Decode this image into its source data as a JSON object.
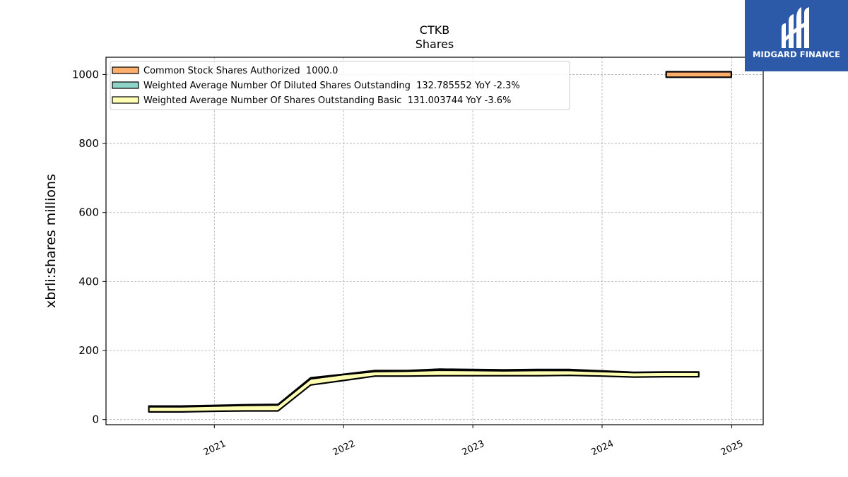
{
  "chart_data": {
    "type": "area",
    "title": "CTKB",
    "subtitle": "Shares",
    "ylabel": "xbrli:shares millions",
    "xlabel": "",
    "ylim": [
      -15,
      1050
    ],
    "y_ticks": [
      "0",
      "200",
      "400",
      "600",
      "800",
      "1000"
    ],
    "x_ticks": [
      "2021",
      "2022",
      "2023",
      "2024",
      "2025"
    ],
    "grid": true,
    "legend_position": "upper-left",
    "series": [
      {
        "name": "Common Stock Shares Authorized  1000.0",
        "color": "#fdae6b",
        "x": [
          "2024-06-30",
          "2024-12-31"
        ],
        "low": [
          992,
          992
        ],
        "high": [
          1008,
          1008
        ]
      },
      {
        "name": "Weighted Average Number Of Diluted Shares Outstanding  132.785552 YoY -2.3%",
        "color": "#8dd3c7",
        "x": [
          "2020-06-30",
          "2020-09-30",
          "2020-12-31",
          "2021-03-31",
          "2021-06-30",
          "2021-09-30",
          "2021-12-31",
          "2022-03-31",
          "2022-06-30",
          "2022-09-30",
          "2022-12-31",
          "2023-03-31",
          "2023-06-30",
          "2023-09-30",
          "2023-12-31",
          "2024-03-31",
          "2024-06-30",
          "2024-09-30"
        ],
        "low": [
          37,
          37,
          39,
          41,
          42,
          118,
          130,
          139,
          140,
          143,
          142,
          141,
          142,
          142,
          139,
          136,
          137,
          137
        ],
        "high": [
          39,
          39,
          41,
          43,
          44,
          121,
          131,
          142,
          142,
          146,
          145,
          144,
          145,
          145,
          141,
          137,
          138,
          138
        ]
      },
      {
        "name": "Weighted Average Number Of Shares Outstanding Basic  131.003744 YoY -3.6%",
        "color": "#ffffb3",
        "x": [
          "2020-06-30",
          "2020-09-30",
          "2020-12-31",
          "2021-03-31",
          "2021-06-30",
          "2021-09-30",
          "2021-12-31",
          "2022-03-31",
          "2022-06-30",
          "2022-09-30",
          "2022-12-31",
          "2023-03-31",
          "2023-06-30",
          "2023-09-30",
          "2023-12-31",
          "2024-03-31",
          "2024-06-30",
          "2024-09-30"
        ],
        "low": [
          22,
          22,
          24,
          25,
          25,
          100,
          113,
          126,
          126,
          127,
          127,
          127,
          127,
          128,
          126,
          123,
          124,
          124
        ],
        "high": [
          37,
          37,
          39,
          41,
          42,
          118,
          130,
          139,
          140,
          143,
          142,
          141,
          142,
          142,
          139,
          136,
          137,
          137
        ]
      }
    ]
  },
  "brand": {
    "name": "MIDGARD FINANCE",
    "logo_icon": "midgard-m-logo-icon",
    "color": "#2d5aa8"
  }
}
